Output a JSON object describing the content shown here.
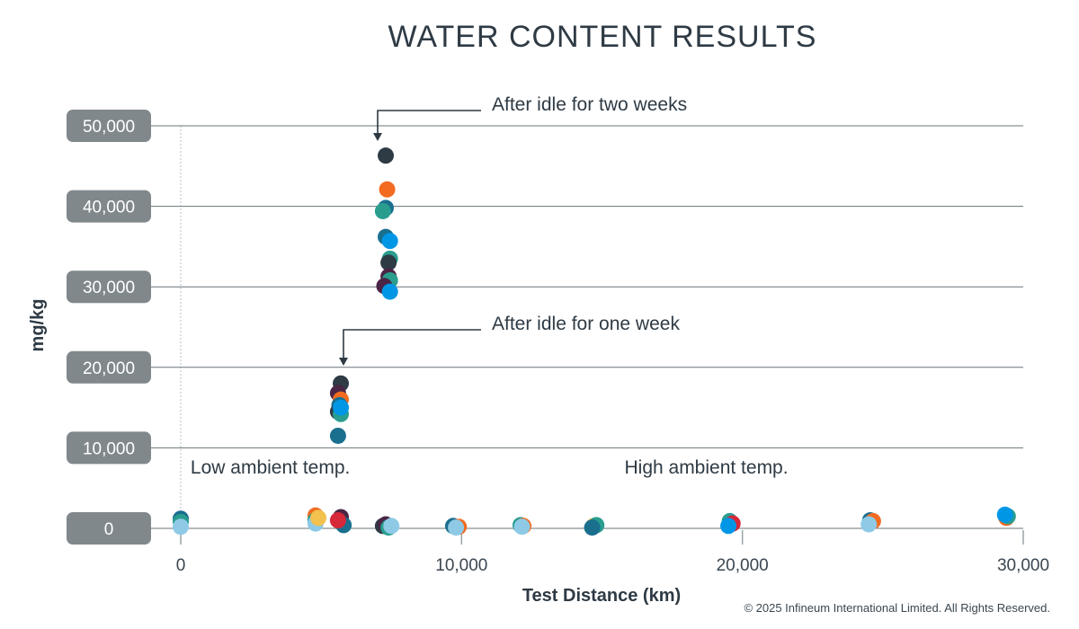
{
  "chart_data": {
    "type": "scatter",
    "title": "WATER CONTENT RESULTS",
    "xlabel": "Test Distance (km)",
    "ylabel": "mg/kg",
    "xlim": [
      0,
      30000
    ],
    "ylim": [
      0,
      50000
    ],
    "x_ticks": [
      0,
      10000,
      20000,
      30000
    ],
    "x_tick_labels": [
      "0",
      "10,000",
      "20,000",
      "30,000"
    ],
    "y_ticks": [
      0,
      10000,
      20000,
      30000,
      40000,
      50000
    ],
    "y_tick_labels": [
      "0",
      "10,000",
      "20,000",
      "30,000",
      "40,000",
      "50,000"
    ],
    "grid": "horizontal",
    "annotations": [
      {
        "text": "After idle for two weeks",
        "x": 7300,
        "y": 48500
      },
      {
        "text": "After idle for one week",
        "x": 5700,
        "y": 21500
      },
      {
        "text": "Low ambient temp.",
        "x": 350,
        "y": 7500
      },
      {
        "text": "High ambient temp.",
        "x": 15800,
        "y": 7500
      }
    ],
    "points": [
      {
        "x": 0,
        "y": 1200,
        "color": "#1a6f8f"
      },
      {
        "x": 0,
        "y": 800,
        "color": "#2a9d8f"
      },
      {
        "x": 0,
        "y": 200,
        "color": "#8ecae6"
      },
      {
        "x": 4800,
        "y": 1600,
        "color": "#f26b21"
      },
      {
        "x": 4800,
        "y": 1000,
        "color": "#2a9d8f"
      },
      {
        "x": 4800,
        "y": 600,
        "color": "#8ecae6"
      },
      {
        "x": 4900,
        "y": 1300,
        "color": "#f2c14e"
      },
      {
        "x": 5700,
        "y": 1400,
        "color": "#4a2545"
      },
      {
        "x": 5700,
        "y": 800,
        "color": "#2e3a44"
      },
      {
        "x": 5800,
        "y": 400,
        "color": "#1a6f8f"
      },
      {
        "x": 5600,
        "y": 1000,
        "color": "#d62839"
      },
      {
        "x": 5700,
        "y": 18000,
        "color": "#2e3a44"
      },
      {
        "x": 5600,
        "y": 16800,
        "color": "#4a2545"
      },
      {
        "x": 5700,
        "y": 16000,
        "color": "#f26b21"
      },
      {
        "x": 5650,
        "y": 15300,
        "color": "#1a6f8f"
      },
      {
        "x": 5600,
        "y": 14500,
        "color": "#2e3a44"
      },
      {
        "x": 5700,
        "y": 14200,
        "color": "#2a9d8f"
      },
      {
        "x": 5700,
        "y": 15000,
        "color": "#0096e6"
      },
      {
        "x": 5600,
        "y": 11500,
        "color": "#1a6f8f"
      },
      {
        "x": 7300,
        "y": 46300,
        "color": "#2e3a44"
      },
      {
        "x": 7350,
        "y": 42100,
        "color": "#f26b21"
      },
      {
        "x": 7300,
        "y": 39800,
        "color": "#1a6f8f"
      },
      {
        "x": 7200,
        "y": 39400,
        "color": "#2a9d8f"
      },
      {
        "x": 7300,
        "y": 36200,
        "color": "#1a6f8f"
      },
      {
        "x": 7450,
        "y": 35700,
        "color": "#0096e6"
      },
      {
        "x": 7450,
        "y": 33500,
        "color": "#2a9d8f"
      },
      {
        "x": 7400,
        "y": 33000,
        "color": "#2e3a44"
      },
      {
        "x": 7400,
        "y": 31300,
        "color": "#4a2545"
      },
      {
        "x": 7450,
        "y": 30800,
        "color": "#2a9d8f"
      },
      {
        "x": 7250,
        "y": 30100,
        "color": "#4a2545"
      },
      {
        "x": 7450,
        "y": 29400,
        "color": "#0096e6"
      },
      {
        "x": 7200,
        "y": 300,
        "color": "#2e3a44"
      },
      {
        "x": 7300,
        "y": 500,
        "color": "#4a2545"
      },
      {
        "x": 7400,
        "y": 100,
        "color": "#2a9d8f"
      },
      {
        "x": 7500,
        "y": 300,
        "color": "#8ecae6"
      },
      {
        "x": 9700,
        "y": 300,
        "color": "#1a6f8f"
      },
      {
        "x": 9900,
        "y": 200,
        "color": "#f26b21"
      },
      {
        "x": 9800,
        "y": 100,
        "color": "#8ecae6"
      },
      {
        "x": 12100,
        "y": 400,
        "color": "#2a9d8f"
      },
      {
        "x": 12200,
        "y": 300,
        "color": "#f26b21"
      },
      {
        "x": 12150,
        "y": 200,
        "color": "#8ecae6"
      },
      {
        "x": 14700,
        "y": 300,
        "color": "#f2c14e"
      },
      {
        "x": 14800,
        "y": 400,
        "color": "#2a9d8f"
      },
      {
        "x": 14650,
        "y": 100,
        "color": "#1a6f8f"
      },
      {
        "x": 19550,
        "y": 900,
        "color": "#2a9d8f"
      },
      {
        "x": 19650,
        "y": 600,
        "color": "#d62839"
      },
      {
        "x": 19500,
        "y": 300,
        "color": "#0096e6"
      },
      {
        "x": 24550,
        "y": 1000,
        "color": "#1a6f8f"
      },
      {
        "x": 24650,
        "y": 900,
        "color": "#f26b21"
      },
      {
        "x": 24500,
        "y": 500,
        "color": "#8ecae6"
      },
      {
        "x": 29400,
        "y": 1300,
        "color": "#f26b21"
      },
      {
        "x": 29450,
        "y": 1500,
        "color": "#2a9d8f"
      },
      {
        "x": 29350,
        "y": 1700,
        "color": "#0096e6"
      }
    ]
  },
  "footer": {
    "copyright": "© 2025 Infineum International Limited. All Rights Reserved."
  }
}
